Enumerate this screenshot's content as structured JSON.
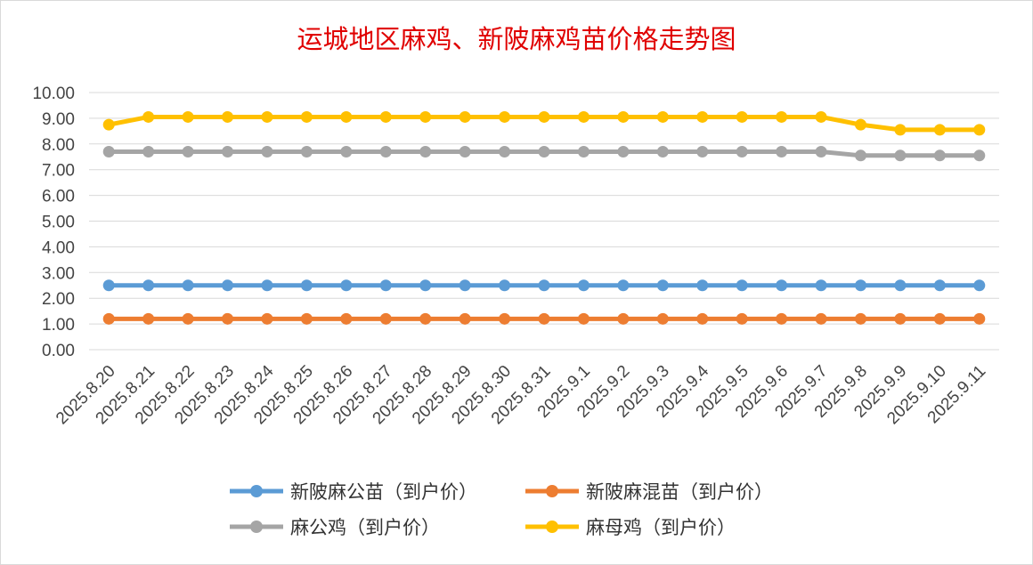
{
  "chart_data": {
    "type": "line",
    "title": "运城地区麻鸡、新陂麻鸡苗价格走势图",
    "xlabel": "",
    "ylabel": "",
    "ylim": [
      0,
      10
    ],
    "ytick_labels": [
      "0.00",
      "1.00",
      "2.00",
      "3.00",
      "4.00",
      "5.00",
      "6.00",
      "7.00",
      "8.00",
      "9.00",
      "10.00"
    ],
    "categories": [
      "2025.8.20",
      "2025.8.21",
      "2025.8.22",
      "2025.8.23",
      "2025.8.24",
      "2025.8.25",
      "2025.8.26",
      "2025.8.27",
      "2025.8.28",
      "2025.8.29",
      "2025.8.30",
      "2025.8.31",
      "2025.9.1",
      "2025.9.2",
      "2025.9.3",
      "2025.9.4",
      "2025.9.5",
      "2025.9.6",
      "2025.9.7",
      "2025.9.8",
      "2025.9.9",
      "2025.9.10",
      "2025.9.11"
    ],
    "series": [
      {
        "name": "新陂麻公苗（到户价）",
        "color": "#5b9bd5",
        "values": [
          2.5,
          2.5,
          2.5,
          2.5,
          2.5,
          2.5,
          2.5,
          2.5,
          2.5,
          2.5,
          2.5,
          2.5,
          2.5,
          2.5,
          2.5,
          2.5,
          2.5,
          2.5,
          2.5,
          2.5,
          2.5,
          2.5,
          2.5
        ]
      },
      {
        "name": "新陂麻混苗（到户价）",
        "color": "#ed7d31",
        "values": [
          1.2,
          1.2,
          1.2,
          1.2,
          1.2,
          1.2,
          1.2,
          1.2,
          1.2,
          1.2,
          1.2,
          1.2,
          1.2,
          1.2,
          1.2,
          1.2,
          1.2,
          1.2,
          1.2,
          1.2,
          1.2,
          1.2,
          1.2
        ]
      },
      {
        "name": "麻公鸡（到户价）",
        "color": "#a5a5a5",
        "values": [
          7.7,
          7.7,
          7.7,
          7.7,
          7.7,
          7.7,
          7.7,
          7.7,
          7.7,
          7.7,
          7.7,
          7.7,
          7.7,
          7.7,
          7.7,
          7.7,
          7.7,
          7.7,
          7.7,
          7.55,
          7.55,
          7.55,
          7.55
        ]
      },
      {
        "name": "麻母鸡（到户价）",
        "color": "#ffc000",
        "values": [
          8.75,
          9.05,
          9.05,
          9.05,
          9.05,
          9.05,
          9.05,
          9.05,
          9.05,
          9.05,
          9.05,
          9.05,
          9.05,
          9.05,
          9.05,
          9.05,
          9.05,
          9.05,
          9.05,
          8.75,
          8.55,
          8.55,
          8.55
        ]
      }
    ],
    "grid": "horizontal",
    "legend_position": "bottom"
  }
}
